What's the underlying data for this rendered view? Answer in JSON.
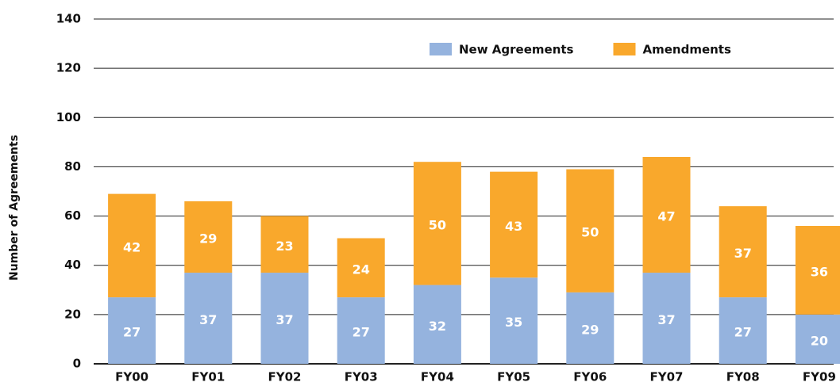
{
  "chart_data": {
    "type": "stacked_bar",
    "y_label": "Number of Agreements",
    "categories": [
      "FY00",
      "FY01",
      "FY02",
      "FY03",
      "FY04",
      "FY05",
      "FY06",
      "FY07",
      "FY08",
      "FY09"
    ],
    "series": [
      {
        "name": "New Agreements",
        "color": "#95b3de",
        "values": [
          27,
          37,
          37,
          27,
          32,
          35,
          29,
          37,
          27,
          20
        ]
      },
      {
        "name": "Amendments",
        "color": "#f9a82c",
        "values": [
          42,
          29,
          23,
          24,
          50,
          43,
          50,
          47,
          37,
          36
        ]
      }
    ],
    "ylim": [
      0,
      140
    ],
    "yticks": [
      0,
      20,
      40,
      60,
      80,
      100,
      120,
      140
    ],
    "grid": true,
    "legend": "top-right"
  }
}
